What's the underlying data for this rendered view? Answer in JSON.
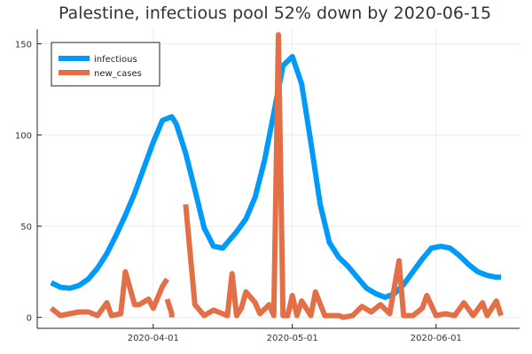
{
  "chart_data": {
    "type": "line",
    "title": "Palestine, infectious pool 52% down by 2020-06-15",
    "xlabel": "",
    "ylabel": "",
    "x_start": "2020-03-10",
    "x_range": [
      "2020-03-07",
      "2020-06-19"
    ],
    "ylim": [
      -6,
      158
    ],
    "x_ticks": [
      "2020-04-01",
      "2020-05-01",
      "2020-06-01"
    ],
    "y_ticks": [
      0,
      50,
      100,
      150
    ],
    "grid": true,
    "legend": {
      "placement": "top-left"
    },
    "series": [
      {
        "name": "infectious",
        "color": "#009af9",
        "x": [
          "2020-03-10",
          "2020-03-12",
          "2020-03-14",
          "2020-03-16",
          "2020-03-18",
          "2020-03-20",
          "2020-03-22",
          "2020-03-24",
          "2020-03-26",
          "2020-03-28",
          "2020-03-30",
          "2020-04-01",
          "2020-04-03",
          "2020-04-05",
          "2020-04-06",
          "2020-04-08",
          "2020-04-10",
          "2020-04-12",
          "2020-04-14",
          "2020-04-16",
          "2020-04-17",
          "2020-04-19",
          "2020-04-21",
          "2020-04-23",
          "2020-04-25",
          "2020-04-27",
          "2020-04-29",
          "2020-05-01",
          "2020-05-03",
          "2020-05-05",
          "2020-05-07",
          "2020-05-09",
          "2020-05-11",
          "2020-05-13",
          "2020-05-15",
          "2020-05-17",
          "2020-05-19",
          "2020-05-21",
          "2020-05-23",
          "2020-05-25",
          "2020-05-27",
          "2020-05-29",
          "2020-05-31",
          "2020-06-02",
          "2020-06-04",
          "2020-06-06",
          "2020-06-08",
          "2020-06-10",
          "2020-06-12",
          "2020-06-14",
          "2020-06-15"
        ],
        "values": [
          19,
          16.5,
          16,
          17.5,
          21,
          27,
          35,
          45,
          56,
          68,
          82,
          96,
          108,
          110,
          106,
          90,
          70,
          49,
          39,
          38,
          41,
          47,
          54,
          66,
          86,
          112,
          138,
          143,
          128,
          96,
          62,
          41,
          33,
          28,
          22,
          16,
          13,
          11,
          13,
          18,
          25,
          32,
          38,
          39,
          38,
          34,
          29,
          25,
          23,
          22,
          22
        ]
      },
      {
        "name": "new_cases",
        "color": "#e26f46",
        "segments": [
          {
            "x": [
              "2020-03-10",
              "2020-03-12",
              "2020-03-14",
              "2020-03-16",
              "2020-03-18",
              "2020-03-20",
              "2020-03-22",
              "2020-03-23",
              "2020-03-25",
              "2020-03-26",
              "2020-03-28",
              "2020-03-29",
              "2020-03-31",
              "2020-04-01",
              "2020-04-03",
              "2020-04-04"
            ],
            "values": [
              5,
              1,
              2,
              3,
              3,
              1,
              8,
              1,
              2,
              25,
              7,
              7,
              10,
              5,
              17,
              21
            ]
          },
          {
            "x": [
              "2020-04-04",
              "2020-04-05",
              "2020-04-05"
            ],
            "values": [
              10,
              2,
              0
            ]
          },
          {
            "x": [
              "2020-04-08",
              "2020-04-10",
              "2020-04-12",
              "2020-04-14",
              "2020-04-16",
              "2020-04-17",
              "2020-04-18",
              "2020-04-19",
              "2020-04-20",
              "2020-04-21",
              "2020-04-23",
              "2020-04-24",
              "2020-04-26",
              "2020-04-27",
              "2020-04-28",
              "2020-04-29",
              "2020-04-30",
              "2020-05-01",
              "2020-05-02",
              "2020-05-03",
              "2020-05-05",
              "2020-05-06",
              "2020-05-08",
              "2020-05-09",
              "2020-05-11",
              "2020-05-12",
              "2020-05-14",
              "2020-05-16",
              "2020-05-18",
              "2020-05-20",
              "2020-05-22",
              "2020-05-24",
              "2020-05-25",
              "2020-05-27",
              "2020-05-29",
              "2020-05-30",
              "2020-06-01",
              "2020-06-03",
              "2020-06-05",
              "2020-06-07",
              "2020-06-09",
              "2020-06-11",
              "2020-06-12",
              "2020-06-14",
              "2020-06-15"
            ],
            "values": [
              62,
              7,
              1,
              4,
              2,
              1,
              24,
              1,
              5,
              14,
              8,
              2,
              7,
              1,
              155,
              1,
              1,
              12,
              1,
              9,
              1,
              14,
              1,
              1,
              1,
              0,
              1,
              6,
              3,
              7,
              2,
              31,
              1,
              1,
              5,
              12,
              1,
              2,
              1,
              8,
              1,
              8,
              1,
              9,
              1
            ]
          }
        ]
      }
    ]
  }
}
